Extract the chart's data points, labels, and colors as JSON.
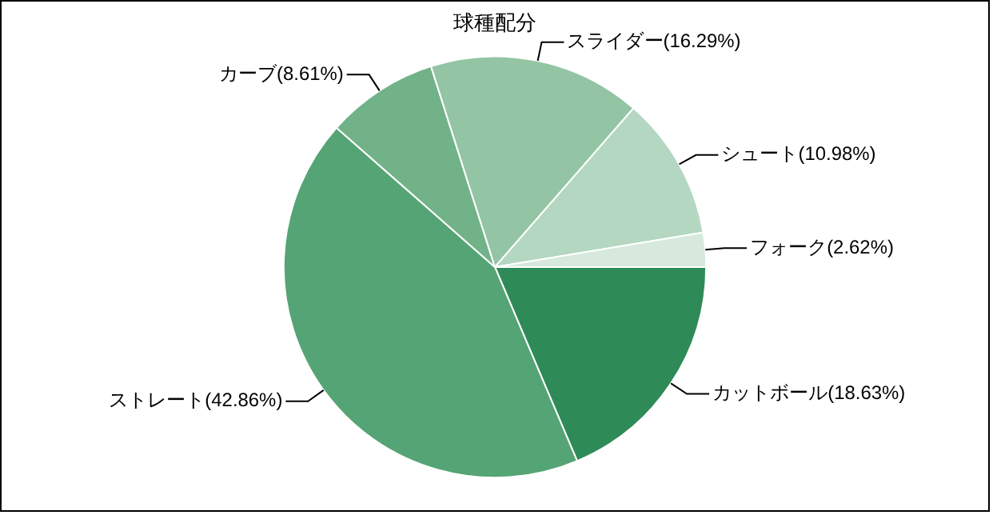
{
  "chart_data": {
    "type": "pie",
    "title": "球種配分",
    "categories": [
      "カットボール(18.63%)",
      "ストレート(42.86%)",
      "カーブ(8.61%)",
      "スライダー(16.29%)",
      "シュート(10.98%)",
      "フォーク(2.62%)"
    ],
    "values": [
      18.63,
      42.86,
      8.61,
      16.29,
      10.98,
      2.62
    ],
    "colors": [
      "#2e8b57",
      "#55a475",
      "#72b289",
      "#93c4a3",
      "#b4d7c1",
      "#d6e9dc"
    ],
    "legend": false
  }
}
